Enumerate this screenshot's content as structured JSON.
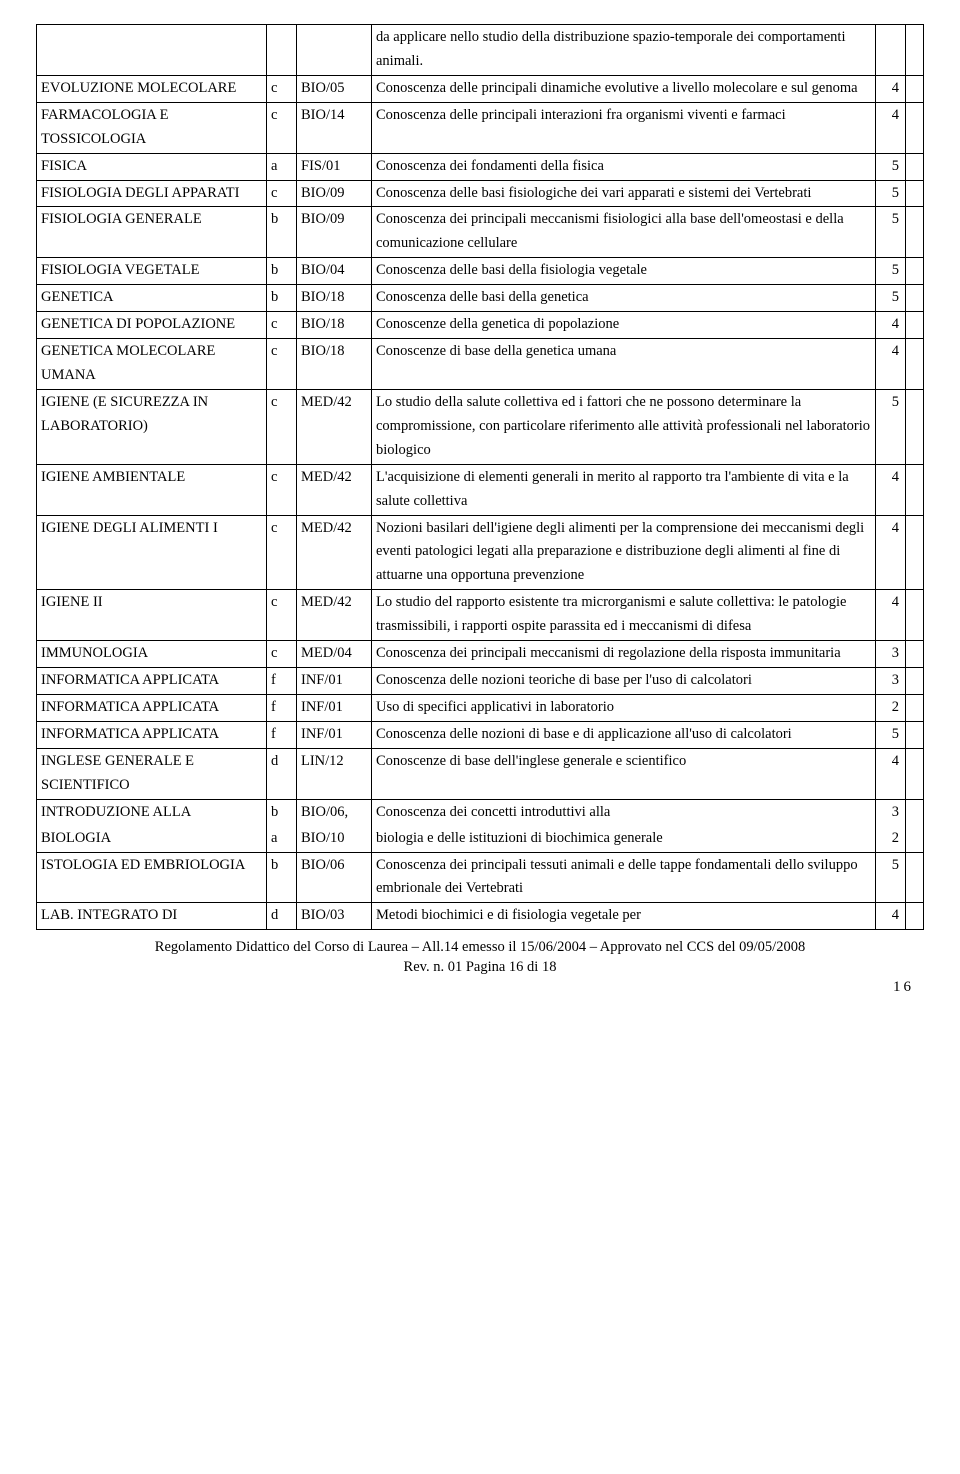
{
  "rows": [
    {
      "c1": "",
      "c2": "",
      "c3": "",
      "c4": "da applicare nello studio della distribuzione spazio-temporale dei comportamenti animali.",
      "c5": "",
      "c6": ""
    },
    {
      "c1": "EVOLUZIONE MOLECOLARE",
      "c2": "c",
      "c3": "BIO/05",
      "c4": "Conoscenza delle principali dinamiche evolutive a livello molecolare e sul genoma",
      "c5": "4",
      "c6": ""
    },
    {
      "c1": "FARMACOLOGIA E TOSSICOLOGIA",
      "c2": "c",
      "c3": "BIO/14",
      "c4": "Conoscenza delle principali interazioni fra organismi viventi e farmaci",
      "c5": "4",
      "c6": ""
    },
    {
      "c1": "FISICA",
      "c2": "a",
      "c3": "FIS/01",
      "c4": "Conoscenza dei fondamenti della fisica",
      "c5": "5",
      "c6": ""
    },
    {
      "c1": "FISIOLOGIA DEGLI APPARATI",
      "c2": "c",
      "c3": "BIO/09",
      "c4": "Conoscenza delle basi fisiologiche dei vari apparati e sistemi dei Vertebrati",
      "c5": "5",
      "c6": ""
    },
    {
      "c1": "FISIOLOGIA GENERALE",
      "c2": "b",
      "c3": "BIO/09",
      "c4": "Conoscenza dei principali meccanismi fisiologici alla base dell'omeostasi e della comunicazione cellulare",
      "c5": "5",
      "c6": ""
    },
    {
      "c1": "FISIOLOGIA VEGETALE",
      "c2": "b",
      "c3": "BIO/04",
      "c4": "Conoscenza delle basi della fisiologia vegetale",
      "c5": "5",
      "c6": ""
    },
    {
      "c1": "GENETICA",
      "c2": "b",
      "c3": "BIO/18",
      "c4": "Conoscenza delle basi della genetica",
      "c5": "5",
      "c6": ""
    },
    {
      "c1": "GENETICA DI POPOLAZIONE",
      "c2": "c",
      "c3": "BIO/18",
      "c4": "Conoscenze della genetica di popolazione",
      "c5": "4",
      "c6": ""
    },
    {
      "c1": "GENETICA MOLECOLARE UMANA",
      "c2": "c",
      "c3": "BIO/18",
      "c4": "Conoscenze di base della genetica umana",
      "c5": "4",
      "c6": ""
    },
    {
      "c1": "IGIENE (E SICUREZZA IN LABORATORIO)",
      "c2": "c",
      "c3": "MED/42",
      "c4": "Lo studio della salute collettiva ed i fattori che ne possono determinare la compromissione, con particolare riferimento alle attività professionali nel laboratorio biologico",
      "c5": "5",
      "c6": ""
    },
    {
      "c1": "IGIENE AMBIENTALE",
      "c2": "c",
      "c3": "MED/42",
      "c4": "L'acquisizione di elementi generali in merito al rapporto tra l'ambiente di vita e la salute collettiva",
      "c5": "4",
      "c6": ""
    },
    {
      "c1": "IGIENE DEGLI ALIMENTI I",
      "c2": "c",
      "c3": "MED/42",
      "c4": "Nozioni basilari dell'igiene degli alimenti per la comprensione dei meccanismi degli eventi patologici legati alla preparazione e distribuzione degli alimenti al fine di attuarne una opportuna prevenzione",
      "c5": "4",
      "c6": ""
    },
    {
      "c1": "IGIENE II",
      "c2": "c",
      "c3": "MED/42",
      "c4": "Lo studio del rapporto esistente tra microrganismi e salute collettiva: le patologie trasmissibili, i rapporti ospite parassita ed i meccanismi di difesa",
      "c5": "4",
      "c6": ""
    },
    {
      "c1": "IMMUNOLOGIA",
      "c2": "c",
      "c3": "MED/04",
      "c4": "Conoscenza dei principali meccanismi di regolazione della risposta immunitaria",
      "c5": "3",
      "c6": ""
    },
    {
      "c1": "INFORMATICA APPLICATA",
      "c2": "f",
      "c3": "INF/01",
      "c4": "Conoscenza delle nozioni teoriche di base per l'uso di calcolatori",
      "c5": "3",
      "c6": ""
    },
    {
      "c1": "INFORMATICA APPLICATA",
      "c2": "f",
      "c3": "INF/01",
      "c4": "Uso di specifici applicativi in laboratorio",
      "c5": "2",
      "c6": ""
    },
    {
      "c1": "INFORMATICA APPLICATA",
      "c2": "f",
      "c3": "INF/01",
      "c4": "Conoscenza delle nozioni di base e di applicazione all'uso di calcolatori",
      "c5": "5",
      "c6": ""
    },
    {
      "c1": "INGLESE GENERALE E SCIENTIFICO",
      "c2": "d",
      "c3": "LIN/12",
      "c4": "Conoscenze di base dell'inglese generale e scientifico",
      "c5": "4",
      "c6": ""
    },
    {
      "c1": "INTRODUZIONE ALLA",
      "c2": "b",
      "c3": "BIO/06,",
      "c4": "Conoscenza dei concetti introduttivi alla",
      "c5": "3",
      "c6": "",
      "noBottom": true
    },
    {
      "c1": "BIOLOGIA",
      "c2": "a",
      "c3": "BIO/10",
      "c4": "biologia e delle istituzioni di biochimica generale",
      "c5": "2",
      "c6": "",
      "noTop": true
    },
    {
      "c1": "ISTOLOGIA ED EMBRIOLOGIA",
      "c2": "b",
      "c3": "BIO/06",
      "c4": "Conoscenza dei principali tessuti animali e delle tappe fondamentali dello sviluppo embrionale dei Vertebrati",
      "c5": "5",
      "c6": ""
    },
    {
      "c1": "LAB. INTEGRATO DI",
      "c2": "d",
      "c3": "BIO/03",
      "c4": "Metodi biochimici e di fisiologia vegetale per",
      "c5": "4",
      "c6": ""
    }
  ],
  "footer": {
    "line1": "Regolamento Didattico del Corso di Laurea – All.14 emesso il 15/06/2004 – Approvato nel CCS del 09/05/2008",
    "line2": "Rev. n. 01 Pagina 16 di 18",
    "pagenum": "16"
  }
}
